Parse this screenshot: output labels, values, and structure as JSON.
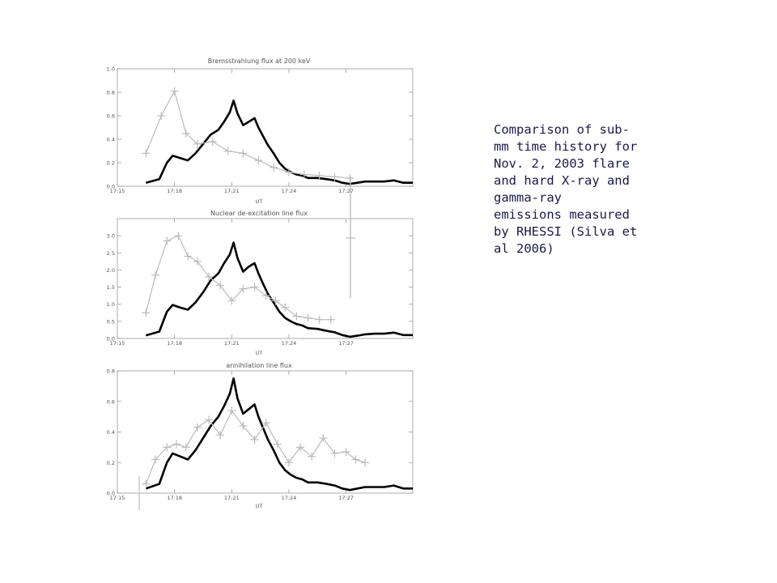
{
  "caption": "Comparison of sub-\nmm time history for\nNov. 2, 2003 flare\nand hard X-ray and\ngamma-ray\nemissions measured\nby RHESSI (Silva et\nal 2006)",
  "chart_data": [
    {
      "type": "line",
      "title": "Bremsstrahlung flux at 200 keV",
      "xlabel": "UT",
      "xlim": [
        0,
        15.5
      ],
      "x_ticks": [
        0,
        3,
        6,
        9,
        12
      ],
      "x_tick_labels": [
        "17:15",
        "17:18",
        "17:21",
        "17:24",
        "17:27"
      ],
      "ylim": [
        0,
        1.0
      ],
      "y_ticks": [
        0,
        0.2,
        0.4,
        0.6,
        0.8,
        1.0
      ],
      "y_tick_labels": [
        "0.0",
        "0.2",
        "0.4",
        "0.6",
        "0.8",
        "1.0"
      ],
      "series": [
        {
          "color": "#000000",
          "x": [
            1.5,
            2.2,
            2.6,
            2.9,
            3.3,
            3.7,
            4.1,
            4.5,
            4.9,
            5.3,
            5.6,
            5.9,
            6.1,
            6.3,
            6.6,
            6.9,
            7.2,
            7.4,
            7.6,
            7.9,
            8.2,
            8.5,
            8.8,
            9.1,
            9.4,
            9.7,
            10.0,
            10.5,
            11.0,
            11.4,
            11.8,
            12.2,
            12.6,
            13.0,
            13.5,
            14.0,
            14.5,
            15.0,
            15.5
          ],
          "y": [
            0.03,
            0.06,
            0.2,
            0.26,
            0.24,
            0.22,
            0.28,
            0.36,
            0.44,
            0.48,
            0.55,
            0.63,
            0.73,
            0.62,
            0.52,
            0.55,
            0.58,
            0.5,
            0.44,
            0.35,
            0.28,
            0.2,
            0.15,
            0.12,
            0.1,
            0.09,
            0.07,
            0.07,
            0.06,
            0.05,
            0.03,
            0.02,
            0.03,
            0.04,
            0.04,
            0.04,
            0.05,
            0.03,
            0.03
          ]
        },
        {
          "color": "#bbbbbb",
          "x": [
            1.5,
            2.3,
            3.0,
            3.6,
            4.2,
            5.0,
            5.8,
            6.6,
            7.4,
            8.2,
            9.0,
            9.8,
            10.6,
            11.4,
            12.2
          ],
          "y": [
            0.28,
            0.6,
            0.81,
            0.45,
            0.36,
            0.38,
            0.3,
            0.28,
            0.22,
            0.16,
            0.12,
            0.1,
            0.09,
            0.08,
            0.07
          ]
        }
      ]
    },
    {
      "type": "line",
      "title": "Nuclear de-excitation line flux",
      "xlabel": "UT",
      "xlim": [
        0,
        15.5
      ],
      "x_ticks": [
        0,
        3,
        6,
        9,
        12
      ],
      "x_tick_labels": [
        "17:15",
        "17:18",
        "17:21",
        "17:24",
        "17:27"
      ],
      "ylim": [
        0,
        3.5
      ],
      "y_ticks": [
        0,
        0.5,
        1.0,
        1.5,
        2.0,
        2.5,
        3.0
      ],
      "y_tick_labels": [
        "0.0",
        "0.5",
        "1.0",
        "1.5",
        "2.0",
        "2.5",
        "3.0"
      ],
      "series": [
        {
          "color": "#000000",
          "x": [
            1.5,
            2.2,
            2.6,
            2.9,
            3.3,
            3.7,
            4.1,
            4.5,
            4.9,
            5.3,
            5.6,
            5.9,
            6.1,
            6.3,
            6.6,
            6.9,
            7.2,
            7.4,
            7.6,
            7.9,
            8.2,
            8.5,
            8.8,
            9.1,
            9.4,
            9.7,
            10.0,
            10.5,
            11.0,
            11.4,
            11.8,
            12.2,
            12.6,
            13.0,
            13.5,
            14.0,
            14.5,
            15.0,
            15.5
          ],
          "y": [
            0.09,
            0.2,
            0.78,
            0.98,
            0.9,
            0.84,
            1.05,
            1.35,
            1.7,
            1.9,
            2.2,
            2.45,
            2.8,
            2.35,
            1.95,
            2.1,
            2.2,
            1.9,
            1.65,
            1.3,
            1.05,
            0.78,
            0.6,
            0.5,
            0.42,
            0.38,
            0.3,
            0.28,
            0.22,
            0.18,
            0.1,
            0.05,
            0.08,
            0.12,
            0.14,
            0.14,
            0.17,
            0.1,
            0.1
          ]
        },
        {
          "color": "#bbbbbb",
          "x": [
            1.5,
            2.0,
            2.6,
            3.2,
            3.7,
            4.2,
            4.8,
            5.4,
            6.0,
            6.6,
            7.2,
            7.8,
            8.3,
            8.8,
            9.4,
            10.0,
            10.6,
            11.2
          ],
          "y": [
            0.75,
            1.85,
            2.85,
            3.0,
            2.4,
            2.25,
            1.8,
            1.55,
            1.1,
            1.45,
            1.5,
            1.25,
            1.1,
            0.9,
            0.65,
            0.6,
            0.55,
            0.55
          ]
        }
      ]
    },
    {
      "type": "line",
      "title": "annihilation line flux",
      "xlabel": "UT",
      "xlim": [
        0,
        15.5
      ],
      "x_ticks": [
        0,
        3,
        6,
        9,
        12
      ],
      "x_tick_labels": [
        "17:15",
        "17:18",
        "17:21",
        "17:24",
        "17:27"
      ],
      "ylim": [
        0,
        0.8
      ],
      "y_ticks": [
        0,
        0.2,
        0.4,
        0.6,
        0.8
      ],
      "y_tick_labels": [
        "0.0",
        "0.2",
        "0.4",
        "0.6",
        "0.8"
      ],
      "series": [
        {
          "color": "#000000",
          "x": [
            1.5,
            2.2,
            2.6,
            2.9,
            3.3,
            3.7,
            4.1,
            4.5,
            4.9,
            5.3,
            5.6,
            5.9,
            6.1,
            6.3,
            6.6,
            6.9,
            7.2,
            7.4,
            7.6,
            7.9,
            8.2,
            8.5,
            8.8,
            9.1,
            9.4,
            9.7,
            10.0,
            10.5,
            11.0,
            11.4,
            11.8,
            12.2,
            12.6,
            13.0,
            13.5,
            14.0,
            14.5,
            15.0,
            15.5
          ],
          "y": [
            0.03,
            0.06,
            0.2,
            0.26,
            0.24,
            0.22,
            0.28,
            0.36,
            0.44,
            0.5,
            0.57,
            0.65,
            0.75,
            0.62,
            0.52,
            0.55,
            0.58,
            0.5,
            0.44,
            0.35,
            0.28,
            0.2,
            0.15,
            0.12,
            0.1,
            0.09,
            0.07,
            0.07,
            0.06,
            0.05,
            0.03,
            0.02,
            0.03,
            0.04,
            0.04,
            0.04,
            0.05,
            0.03,
            0.03
          ]
        },
        {
          "color": "#bbbbbb",
          "x": [
            1.5,
            2.0,
            2.6,
            3.1,
            3.6,
            4.2,
            4.8,
            5.4,
            6.0,
            6.6,
            7.2,
            7.8,
            8.4,
            9.0,
            9.6,
            10.2,
            10.8,
            11.4,
            12.0,
            12.5,
            13.0
          ],
          "y": [
            0.06,
            0.22,
            0.3,
            0.32,
            0.3,
            0.43,
            0.48,
            0.38,
            0.54,
            0.44,
            0.35,
            0.46,
            0.32,
            0.2,
            0.3,
            0.24,
            0.36,
            0.26,
            0.27,
            0.22,
            0.2
          ]
        }
      ]
    }
  ]
}
